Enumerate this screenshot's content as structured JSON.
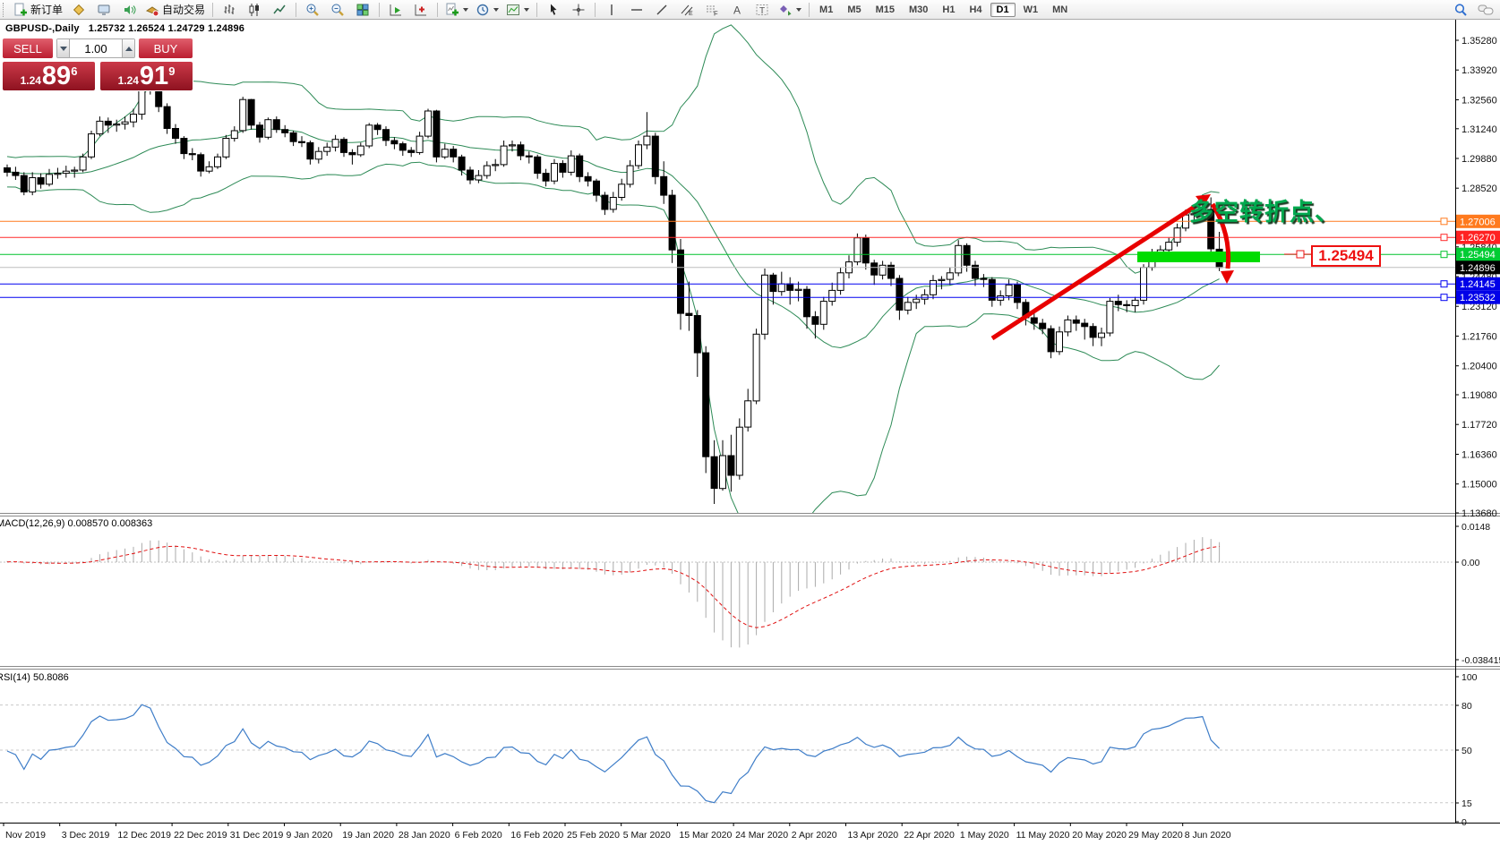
{
  "toolbar": {
    "new_order_label": "新订单",
    "autotrading_label": "自动交易",
    "timeframes": [
      "M1",
      "M5",
      "M15",
      "M30",
      "H1",
      "H4",
      "D1",
      "W1",
      "MN"
    ],
    "active_timeframe": "D1"
  },
  "chart": {
    "title": "GBPUSD-,Daily",
    "ohlc_line": "1.25732 1.26524 1.24729 1.24896"
  },
  "trade_panel": {
    "sell_label": "SELL",
    "buy_label": "BUY",
    "volume": "1.00",
    "sell_price": {
      "small": "1.24",
      "big": "89",
      "sup": "6"
    },
    "buy_price": {
      "small": "1.24",
      "big": "91",
      "sup": "9"
    }
  },
  "annotations": {
    "pivot_text": "多空转折点、",
    "price_box_value": "1.25494",
    "green_zone_price_center": 1.25494,
    "trend_color": "#e80000",
    "zone_color": "#00dc00"
  },
  "macd": {
    "label": "MACD(12,26,9) 0.008570 0.008363",
    "params": "12,26,9",
    "value_main": "0.008570",
    "value_signal": "0.008363",
    "axis": {
      "max": "0.0148",
      "zero": "0.00",
      "min": "-0.038415"
    },
    "histogram_color": "#ababab",
    "signal_color": "#e01010"
  },
  "rsi": {
    "label": "RSI(14) 50.8086",
    "period": 14,
    "value": "50.8086",
    "axis_labels": [
      "100",
      "80",
      "50",
      "15",
      "0"
    ],
    "level_lines": [
      80,
      50,
      15
    ],
    "line_color": "#3e7dc8"
  },
  "price_axis_ticks": [
    "1.35280",
    "1.33920",
    "1.32560",
    "1.31240",
    "1.29880",
    "1.28520",
    "1.25840",
    "1.24480",
    "1.23120",
    "1.21760",
    "1.20400",
    "1.19080",
    "1.17720",
    "1.16360",
    "1.15000",
    "1.13680"
  ],
  "date_axis": [
    "Nov 2019",
    "3 Dec 2019",
    "12 Dec 2019",
    "22 Dec 2019",
    "31 Dec 2019",
    "9 Jan 2020",
    "19 Jan 2020",
    "28 Jan 2020",
    "6 Feb 2020",
    "16 Feb 2020",
    "25 Feb 2020",
    "5 Mar 2020",
    "15 Mar 2020",
    "24 Mar 2020",
    "2 Apr 2020",
    "13 Apr 2020",
    "22 Apr 2020",
    "1 May 2020",
    "11 May 2020",
    "20 May 2020",
    "29 May 2020",
    "8 Jun 2020"
  ],
  "horizontal_lines": [
    {
      "label": "1.27006",
      "price": 1.27006,
      "line_color": "#ff7a1e",
      "label_bg": "#ff7a1e",
      "marker": true
    },
    {
      "label": "1.26270",
      "price": 1.2627,
      "line_color": "#ff2a2a",
      "label_bg": "#ff2121",
      "marker": true
    },
    {
      "label": "1.25494",
      "price": 1.25494,
      "line_color": "#00c22b",
      "label_bg": "#00cc33",
      "marker": true
    },
    {
      "label": "1.24896",
      "price": 1.24896,
      "line_color": "#bdbdbd",
      "label_bg": "#000000",
      "marker": false
    },
    {
      "label": "1.24145",
      "price": 1.24145,
      "line_color": "#0000f0",
      "label_bg": "#0000e8",
      "marker": true
    },
    {
      "label": "1.23532",
      "price": 1.23532,
      "line_color": "#0000f0",
      "label_bg": "#0000e8",
      "marker": true
    }
  ],
  "chart_data": {
    "type": "candlestick",
    "symbol": "GBPUSD-",
    "timeframe": "Daily",
    "title": "GBPUSD- Daily with Bollinger Bands(20,2), MACD(12,26,9), RSI(14)",
    "current_bar": {
      "open": 1.25732,
      "high": 1.26524,
      "low": 1.24729,
      "close": 1.24896
    },
    "bollinger": {
      "period": 20,
      "deviation": 2,
      "color": "#2e8b57"
    },
    "candle_bull_fill": "#ffffff",
    "candle_bear_fill": "#000000",
    "candles": [
      [
        1.2945,
        1.296,
        1.2905,
        1.2925
      ],
      [
        1.2925,
        1.295,
        1.289,
        1.291
      ],
      [
        1.291,
        1.2925,
        1.282,
        1.2835
      ],
      [
        1.2835,
        1.2925,
        1.282,
        1.29
      ],
      [
        1.29,
        1.292,
        1.285,
        1.287
      ],
      [
        1.287,
        1.294,
        1.286,
        1.2915
      ],
      [
        1.2915,
        1.2945,
        1.2895,
        1.292
      ],
      [
        1.292,
        1.2955,
        1.29,
        1.293
      ],
      [
        1.293,
        1.295,
        1.29,
        1.2935
      ],
      [
        1.2935,
        1.301,
        1.2925,
        1.2995
      ],
      [
        1.2995,
        1.3115,
        1.2985,
        1.31
      ],
      [
        1.31,
        1.318,
        1.309,
        1.3158
      ],
      [
        1.3158,
        1.3175,
        1.3105,
        1.314
      ],
      [
        1.314,
        1.3165,
        1.311,
        1.3145
      ],
      [
        1.3145,
        1.318,
        1.312,
        1.3155
      ],
      [
        1.3155,
        1.3215,
        1.313,
        1.319
      ],
      [
        1.319,
        1.335,
        1.3165,
        1.333
      ],
      [
        1.333,
        1.3345,
        1.328,
        1.3315
      ],
      [
        1.3315,
        1.332,
        1.32,
        1.3225
      ],
      [
        1.3225,
        1.324,
        1.31,
        1.3125
      ],
      [
        1.3125,
        1.3145,
        1.3055,
        1.308
      ],
      [
        1.308,
        1.309,
        1.2985,
        1.301
      ],
      [
        1.301,
        1.3035,
        1.298,
        1.3005
      ],
      [
        1.3005,
        1.3015,
        1.2905,
        1.293
      ],
      [
        1.293,
        1.2975,
        1.292,
        1.295
      ],
      [
        1.295,
        1.301,
        1.294,
        1.2995
      ],
      [
        1.2995,
        1.3095,
        1.2985,
        1.308
      ],
      [
        1.308,
        1.3135,
        1.3065,
        1.3115
      ],
      [
        1.3115,
        1.327,
        1.3105,
        1.3257
      ],
      [
        1.3257,
        1.326,
        1.312,
        1.314
      ],
      [
        1.314,
        1.3155,
        1.306,
        1.3085
      ],
      [
        1.3085,
        1.3175,
        1.3075,
        1.3165
      ],
      [
        1.3165,
        1.318,
        1.3105,
        1.312
      ],
      [
        1.312,
        1.314,
        1.3085,
        1.3105
      ],
      [
        1.3105,
        1.3115,
        1.3045,
        1.3065
      ],
      [
        1.3065,
        1.309,
        1.304,
        1.306
      ],
      [
        1.306,
        1.307,
        1.296,
        1.2985
      ],
      [
        1.2985,
        1.304,
        1.2965,
        1.302
      ],
      [
        1.302,
        1.306,
        1.3,
        1.304
      ],
      [
        1.304,
        1.3095,
        1.302,
        1.3075
      ],
      [
        1.3075,
        1.3085,
        1.2995,
        1.3015
      ],
      [
        1.3015,
        1.303,
        1.296,
        1.3005
      ],
      [
        1.3005,
        1.306,
        1.2995,
        1.3045
      ],
      [
        1.3045,
        1.315,
        1.3035,
        1.314
      ],
      [
        1.314,
        1.315,
        1.3095,
        1.312
      ],
      [
        1.312,
        1.3135,
        1.3045,
        1.307
      ],
      [
        1.307,
        1.3085,
        1.303,
        1.3055
      ],
      [
        1.3055,
        1.3065,
        1.3,
        1.3025
      ],
      [
        1.3025,
        1.304,
        1.2995,
        1.3015
      ],
      [
        1.3015,
        1.311,
        1.3005,
        1.309
      ],
      [
        1.309,
        1.3215,
        1.308,
        1.3205
      ],
      [
        1.3205,
        1.321,
        1.297,
        1.2995
      ],
      [
        1.2995,
        1.3055,
        1.2985,
        1.303
      ],
      [
        1.303,
        1.3045,
        1.297,
        1.2995
      ],
      [
        1.2995,
        1.3005,
        1.291,
        1.2935
      ],
      [
        1.2935,
        1.295,
        1.287,
        1.289
      ],
      [
        1.289,
        1.2935,
        1.2875,
        1.291
      ],
      [
        1.291,
        1.2975,
        1.2895,
        1.2955
      ],
      [
        1.2955,
        1.2985,
        1.293,
        1.296
      ],
      [
        1.296,
        1.307,
        1.295,
        1.3045
      ],
      [
        1.3045,
        1.307,
        1.302,
        1.305
      ],
      [
        1.305,
        1.3065,
        1.298,
        1.3
      ],
      [
        1.3,
        1.302,
        1.2965,
        1.2995
      ],
      [
        1.2995,
        1.3005,
        1.2895,
        1.292
      ],
      [
        1.292,
        1.294,
        1.286,
        1.2885
      ],
      [
        1.2885,
        1.2985,
        1.287,
        1.2965
      ],
      [
        1.2965,
        1.298,
        1.29,
        1.2925
      ],
      [
        1.2925,
        1.3025,
        1.291,
        1.3
      ],
      [
        1.3,
        1.301,
        1.288,
        1.2905
      ],
      [
        1.2905,
        1.2925,
        1.286,
        1.2885
      ],
      [
        1.2885,
        1.2895,
        1.279,
        1.282
      ],
      [
        1.282,
        1.2835,
        1.273,
        1.2755
      ],
      [
        1.2755,
        1.2835,
        1.274,
        1.281
      ],
      [
        1.281,
        1.2895,
        1.2795,
        1.287
      ],
      [
        1.287,
        1.298,
        1.2855,
        1.2955
      ],
      [
        1.2955,
        1.307,
        1.294,
        1.305
      ],
      [
        1.305,
        1.32,
        1.303,
        1.309
      ],
      [
        1.309,
        1.3105,
        1.287,
        1.2905
      ],
      [
        1.2905,
        1.2975,
        1.278,
        1.282
      ],
      [
        1.282,
        1.2845,
        1.251,
        1.257
      ],
      [
        1.257,
        1.262,
        1.2205,
        1.228
      ],
      [
        1.228,
        1.2425,
        1.22,
        1.227
      ],
      [
        1.227,
        1.2295,
        1.199,
        1.21
      ],
      [
        1.21,
        1.213,
        1.155,
        1.1625
      ],
      [
        1.1625,
        1.17,
        1.1409,
        1.148
      ],
      [
        1.148,
        1.17,
        1.147,
        1.163
      ],
      [
        1.163,
        1.1725,
        1.1465,
        1.154
      ],
      [
        1.154,
        1.18,
        1.152,
        1.176
      ],
      [
        1.176,
        1.1935,
        1.174,
        1.188
      ],
      [
        1.188,
        1.221,
        1.1865,
        1.2185
      ],
      [
        1.2185,
        1.2485,
        1.216,
        1.2455
      ],
      [
        1.2455,
        1.2465,
        1.232,
        1.238
      ],
      [
        1.238,
        1.247,
        1.236,
        1.2415
      ],
      [
        1.2415,
        1.2445,
        1.232,
        1.2385
      ],
      [
        1.2385,
        1.2425,
        1.2335,
        1.239
      ],
      [
        1.239,
        1.2405,
        1.221,
        1.2265
      ],
      [
        1.2265,
        1.229,
        1.2165,
        1.223
      ],
      [
        1.223,
        1.2355,
        1.2205,
        1.2335
      ],
      [
        1.2335,
        1.242,
        1.2315,
        1.2385
      ],
      [
        1.2385,
        1.249,
        1.2365,
        1.2465
      ],
      [
        1.2465,
        1.2545,
        1.244,
        1.2515
      ],
      [
        1.2515,
        1.2645,
        1.25,
        1.2625
      ],
      [
        1.2625,
        1.264,
        1.248,
        1.251
      ],
      [
        1.251,
        1.2525,
        1.241,
        1.2455
      ],
      [
        1.2455,
        1.252,
        1.2435,
        1.25
      ],
      [
        1.25,
        1.2515,
        1.2405,
        1.244
      ],
      [
        1.244,
        1.2455,
        1.225,
        1.2295
      ],
      [
        1.2295,
        1.2355,
        1.2275,
        1.233
      ],
      [
        1.233,
        1.2365,
        1.23,
        1.2345
      ],
      [
        1.2345,
        1.239,
        1.232,
        1.2365
      ],
      [
        1.2365,
        1.2455,
        1.2345,
        1.243
      ],
      [
        1.243,
        1.245,
        1.239,
        1.2435
      ],
      [
        1.2435,
        1.249,
        1.241,
        1.2465
      ],
      [
        1.2465,
        1.2615,
        1.245,
        1.259
      ],
      [
        1.259,
        1.26,
        1.247,
        1.25
      ],
      [
        1.25,
        1.252,
        1.2405,
        1.244
      ],
      [
        1.244,
        1.246,
        1.24,
        1.2435
      ],
      [
        1.2435,
        1.2445,
        1.231,
        1.234
      ],
      [
        1.234,
        1.2385,
        1.2315,
        1.236
      ],
      [
        1.236,
        1.2435,
        1.234,
        1.241
      ],
      [
        1.241,
        1.2425,
        1.23,
        1.233
      ],
      [
        1.233,
        1.2345,
        1.2225,
        1.226
      ],
      [
        1.226,
        1.229,
        1.2205,
        1.2235
      ],
      [
        1.2235,
        1.2255,
        1.2185,
        1.221
      ],
      [
        1.221,
        1.2225,
        1.2075,
        1.2105
      ],
      [
        1.2105,
        1.222,
        1.209,
        1.2195
      ],
      [
        1.2195,
        1.227,
        1.2175,
        1.225
      ],
      [
        1.225,
        1.227,
        1.22,
        1.2235
      ],
      [
        1.2235,
        1.2255,
        1.216,
        1.222
      ],
      [
        1.222,
        1.2235,
        1.213,
        1.217
      ],
      [
        1.217,
        1.2215,
        1.213,
        1.219
      ],
      [
        1.219,
        1.235,
        1.2175,
        1.2335
      ],
      [
        1.2335,
        1.2365,
        1.229,
        1.232
      ],
      [
        1.232,
        1.234,
        1.2285,
        1.2315
      ],
      [
        1.2315,
        1.2355,
        1.2285,
        1.234
      ],
      [
        1.234,
        1.2505,
        1.232,
        1.249
      ],
      [
        1.249,
        1.2575,
        1.2475,
        1.2555
      ],
      [
        1.2555,
        1.259,
        1.253,
        1.257
      ],
      [
        1.257,
        1.2625,
        1.255,
        1.2605
      ],
      [
        1.2605,
        1.269,
        1.2585,
        1.267
      ],
      [
        1.267,
        1.2755,
        1.2655,
        1.273
      ],
      [
        1.273,
        1.276,
        1.2705,
        1.2735
      ],
      [
        1.2735,
        1.2812,
        1.2715,
        1.2755
      ],
      [
        1.2755,
        1.281,
        1.254,
        1.2575
      ],
      [
        1.25732,
        1.26524,
        1.24729,
        1.24896
      ]
    ]
  }
}
